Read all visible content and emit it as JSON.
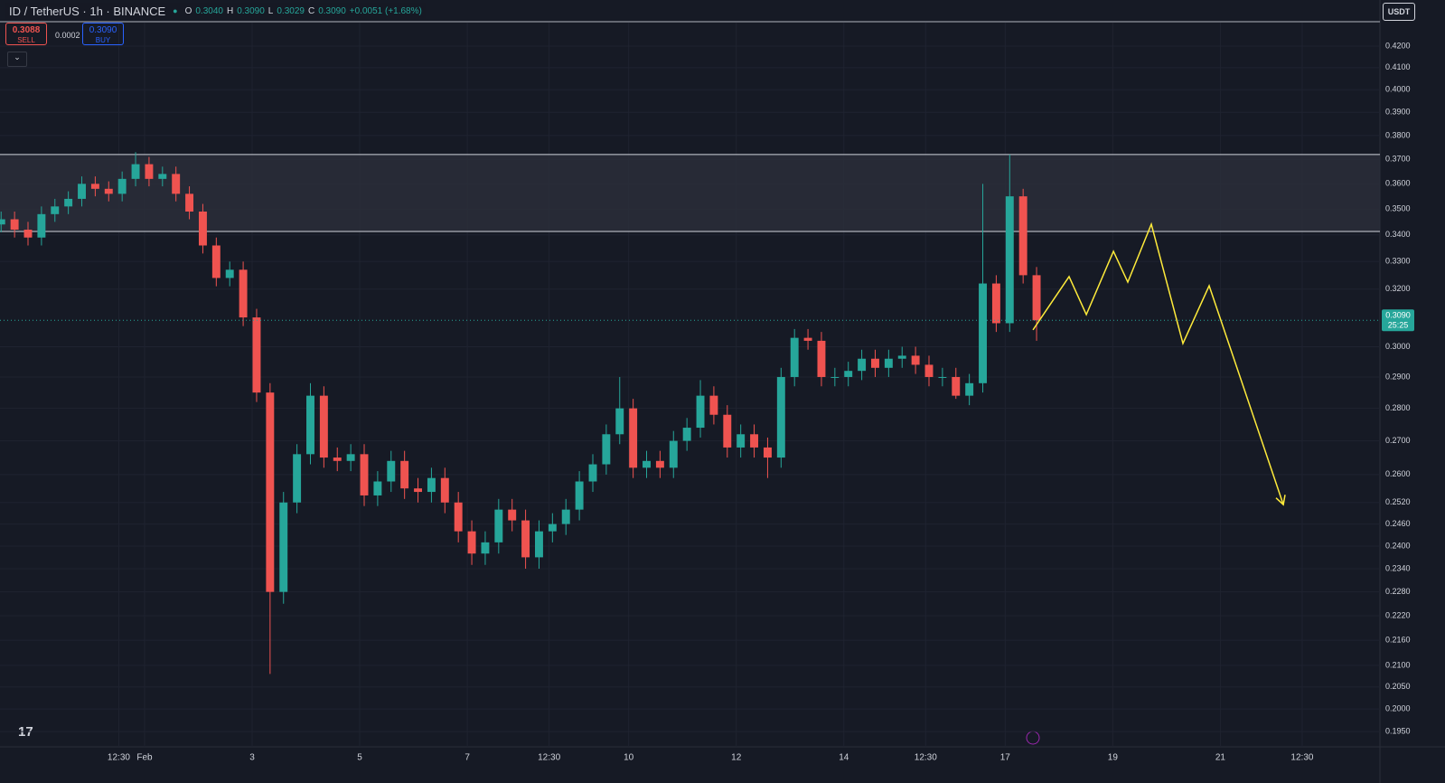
{
  "header": {
    "symbol": "ID / TetherUS · 1h · BINANCE",
    "o_label": "O",
    "open": "0.3040",
    "h_label": "H",
    "high": "0.3090",
    "l_label": "L",
    "low": "0.3029",
    "c_label": "C",
    "close": "0.3090",
    "change": "+0.0051 (+1.68%)"
  },
  "trade": {
    "sell_price": "0.3088",
    "sell": "SELL",
    "spread": "0.0002",
    "buy_price": "0.3090",
    "buy": "BUY",
    "currency": "USDT"
  },
  "chart_data": {
    "type": "candlestick",
    "log": true,
    "grid": true,
    "up_color": "#26a69a",
    "down_color": "#ef5350",
    "t": [
      -64,
      -58,
      -52,
      -46,
      -40,
      -34,
      -28,
      -22,
      -16,
      -10,
      -4,
      2,
      8,
      14,
      20,
      26,
      32,
      38,
      44,
      50,
      56,
      62,
      68,
      74,
      80,
      86,
      92,
      98,
      104,
      110,
      116,
      122,
      128,
      134,
      140,
      146,
      152,
      158,
      164,
      170,
      176,
      182,
      188,
      194,
      200,
      206,
      212,
      218,
      224,
      230,
      236,
      242,
      248,
      254,
      260,
      266,
      272,
      278,
      284,
      290,
      296,
      302,
      308,
      314,
      320,
      326,
      332,
      338,
      344,
      350,
      356,
      362,
      368,
      374,
      380,
      386,
      392,
      398
    ],
    "open": [
      0.344,
      0.346,
      0.342,
      0.339,
      0.348,
      0.351,
      0.354,
      0.36,
      0.358,
      0.356,
      0.362,
      0.368,
      0.362,
      0.364,
      0.356,
      0.349,
      0.336,
      0.324,
      0.327,
      0.31,
      0.285,
      0.228,
      0.252,
      0.266,
      0.284,
      0.265,
      0.264,
      0.266,
      0.254,
      0.258,
      0.264,
      0.256,
      0.255,
      0.259,
      0.252,
      0.244,
      0.238,
      0.241,
      0.25,
      0.247,
      0.237,
      0.244,
      0.246,
      0.25,
      0.258,
      0.263,
      0.272,
      0.28,
      0.262,
      0.264,
      0.262,
      0.27,
      0.274,
      0.284,
      0.278,
      0.268,
      0.272,
      0.268,
      0.265,
      0.29,
      0.303,
      0.302,
      0.29,
      0.29,
      0.292,
      0.296,
      0.293,
      0.296,
      0.297,
      0.294,
      0.29,
      0.29,
      0.284,
      0.288,
      0.322,
      0.308,
      0.355,
      0.325
    ],
    "high": [
      0.349,
      0.349,
      0.345,
      0.351,
      0.354,
      0.357,
      0.363,
      0.363,
      0.361,
      0.365,
      0.373,
      0.371,
      0.367,
      0.367,
      0.359,
      0.352,
      0.339,
      0.33,
      0.33,
      0.313,
      0.288,
      0.255,
      0.269,
      0.288,
      0.287,
      0.268,
      0.269,
      0.269,
      0.261,
      0.267,
      0.267,
      0.259,
      0.262,
      0.262,
      0.255,
      0.247,
      0.244,
      0.253,
      0.253,
      0.25,
      0.247,
      0.249,
      0.253,
      0.261,
      0.266,
      0.275,
      0.29,
      0.283,
      0.267,
      0.267,
      0.273,
      0.277,
      0.289,
      0.287,
      0.281,
      0.275,
      0.275,
      0.271,
      0.293,
      0.306,
      0.306,
      0.305,
      0.293,
      0.295,
      0.299,
      0.299,
      0.299,
      0.3,
      0.3,
      0.297,
      0.293,
      0.293,
      0.291,
      0.36,
      0.325,
      0.372,
      0.358,
      0.328
    ],
    "low": [
      0.341,
      0.339,
      0.336,
      0.336,
      0.345,
      0.348,
      0.351,
      0.355,
      0.353,
      0.353,
      0.359,
      0.359,
      0.359,
      0.353,
      0.346,
      0.333,
      0.321,
      0.321,
      0.307,
      0.282,
      0.208,
      0.225,
      0.249,
      0.263,
      0.262,
      0.261,
      0.261,
      0.251,
      0.251,
      0.255,
      0.253,
      0.252,
      0.252,
      0.249,
      0.241,
      0.235,
      0.235,
      0.238,
      0.244,
      0.234,
      0.234,
      0.241,
      0.243,
      0.247,
      0.255,
      0.26,
      0.269,
      0.259,
      0.259,
      0.259,
      0.259,
      0.267,
      0.271,
      0.275,
      0.265,
      0.265,
      0.265,
      0.259,
      0.262,
      0.287,
      0.299,
      0.287,
      0.287,
      0.287,
      0.289,
      0.29,
      0.29,
      0.293,
      0.291,
      0.287,
      0.287,
      0.283,
      0.281,
      0.285,
      0.305,
      0.305,
      0.322,
      0.302
    ],
    "close": [
      0.346,
      0.342,
      0.339,
      0.348,
      0.351,
      0.354,
      0.36,
      0.358,
      0.356,
      0.362,
      0.368,
      0.362,
      0.364,
      0.356,
      0.349,
      0.336,
      0.324,
      0.327,
      0.31,
      0.285,
      0.228,
      0.252,
      0.266,
      0.284,
      0.265,
      0.264,
      0.266,
      0.254,
      0.258,
      0.264,
      0.256,
      0.255,
      0.259,
      0.252,
      0.244,
      0.238,
      0.241,
      0.25,
      0.247,
      0.237,
      0.244,
      0.246,
      0.25,
      0.258,
      0.263,
      0.272,
      0.28,
      0.262,
      0.264,
      0.262,
      0.27,
      0.274,
      0.284,
      0.278,
      0.268,
      0.272,
      0.268,
      0.265,
      0.29,
      0.303,
      0.302,
      0.29,
      0.29,
      0.292,
      0.296,
      0.293,
      0.296,
      0.297,
      0.294,
      0.29,
      0.29,
      0.284,
      0.288,
      0.322,
      0.308,
      0.355,
      0.325,
      0.309
    ],
    "xlim": [
      -64.5,
      551.2
    ],
    "ylim": [
      0.1917,
      0.4312
    ],
    "xticks": [
      {
        "value": -11.5,
        "label": "12:30"
      },
      {
        "value": 0,
        "label": "Feb"
      },
      {
        "value": 48,
        "label": "3"
      },
      {
        "value": 96,
        "label": "5"
      },
      {
        "value": 144,
        "label": "7"
      },
      {
        "value": 180.5,
        "label": "12:30"
      },
      {
        "value": 216,
        "label": "10"
      },
      {
        "value": 264,
        "label": "12"
      },
      {
        "value": 312,
        "label": "14"
      },
      {
        "value": 348.5,
        "label": "12:30"
      },
      {
        "value": 384,
        "label": "17"
      },
      {
        "value": 432,
        "label": "19"
      },
      {
        "value": 480,
        "label": "21"
      },
      {
        "value": 516.5,
        "label": "12:30"
      }
    ],
    "yticks": [
      {
        "value": 0.42,
        "label": "0.4200"
      },
      {
        "value": 0.41,
        "label": "0.4100"
      },
      {
        "value": 0.4,
        "label": "0.4000"
      },
      {
        "value": 0.39,
        "label": "0.3900"
      },
      {
        "value": 0.38,
        "label": "0.3800"
      },
      {
        "value": 0.37,
        "label": "0.3700"
      },
      {
        "value": 0.36,
        "label": "0.3600"
      },
      {
        "value": 0.35,
        "label": "0.3500"
      },
      {
        "value": 0.34,
        "label": "0.3400"
      },
      {
        "value": 0.33,
        "label": "0.3300"
      },
      {
        "value": 0.32,
        "label": "0.3200"
      },
      {
        "value": 0.3,
        "label": "0.3000"
      },
      {
        "value": 0.29,
        "label": "0.2900"
      },
      {
        "value": 0.28,
        "label": "0.2800"
      },
      {
        "value": 0.27,
        "label": "0.2700"
      },
      {
        "value": 0.26,
        "label": "0.2600"
      },
      {
        "value": 0.252,
        "label": "0.2520"
      },
      {
        "value": 0.246,
        "label": "0.2460"
      },
      {
        "value": 0.24,
        "label": "0.2400"
      },
      {
        "value": 0.234,
        "label": "0.2340"
      },
      {
        "value": 0.228,
        "label": "0.2280"
      },
      {
        "value": 0.222,
        "label": "0.2220"
      },
      {
        "value": 0.216,
        "label": "0.2160"
      },
      {
        "value": 0.21,
        "label": "0.2100"
      },
      {
        "value": 0.205,
        "label": "0.2050"
      },
      {
        "value": 0.2,
        "label": "0.2000"
      },
      {
        "value": 0.195,
        "label": "0.1950"
      }
    ],
    "last_price": {
      "value": 0.309,
      "label": "0.3090"
    },
    "countdown": "25:25",
    "zone": [
      0.3413,
      0.372
    ],
    "zone_color": "#2a2e39",
    "projection": {
      "color": "#ffeb3b",
      "t": [
        396.4,
        412.5,
        420.2,
        432.3,
        438.7,
        449.2,
        463.3,
        475,
        508.1
      ],
      "values": [
        0.3057,
        0.3245,
        0.311,
        0.3338,
        0.3225,
        0.3441,
        0.3011,
        0.3212,
        0.2514
      ]
    }
  }
}
